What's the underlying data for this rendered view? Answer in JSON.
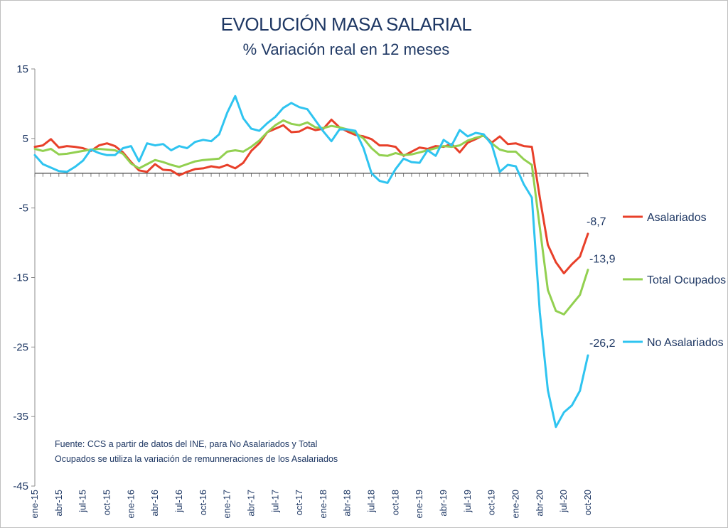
{
  "chart_data": {
    "type": "line",
    "title": "EVOLUCIÓN MASA SALARIAL",
    "subtitle": "% Variación real en 12 meses",
    "xlabel": "",
    "ylabel": "",
    "ylim": [
      -45,
      15
    ],
    "yticks": [
      15,
      5,
      -5,
      -15,
      -25,
      -35,
      -45
    ],
    "ytick_labels": [
      "15",
      "5",
      "-5",
      "-15",
      "-25",
      "-35",
      "-45"
    ],
    "x": [
      "ene-15",
      "feb-15",
      "mar-15",
      "abr-15",
      "may-15",
      "jun-15",
      "jul-15",
      "ago-15",
      "sep-15",
      "oct-15",
      "nov-15",
      "dic-15",
      "ene-16",
      "feb-16",
      "mar-16",
      "abr-16",
      "may-16",
      "jun-16",
      "jul-16",
      "ago-16",
      "sep-16",
      "oct-16",
      "nov-16",
      "dic-16",
      "ene-17",
      "feb-17",
      "mar-17",
      "abr-17",
      "may-17",
      "jun-17",
      "jul-17",
      "ago-17",
      "sep-17",
      "oct-17",
      "nov-17",
      "dic-17",
      "ene-18",
      "feb-18",
      "mar-18",
      "abr-18",
      "may-18",
      "jun-18",
      "jul-18",
      "ago-18",
      "sep-18",
      "oct-18",
      "nov-18",
      "dic-18",
      "ene-19",
      "feb-19",
      "mar-19",
      "abr-19",
      "may-19",
      "jun-19",
      "jul-19",
      "ago-19",
      "sep-19",
      "oct-19",
      "nov-19",
      "dic-19",
      "ene-20",
      "feb-20",
      "mar-20",
      "abr-20",
      "may-20",
      "jun-20",
      "jul-20",
      "ago-20",
      "sep-20",
      "oct-20"
    ],
    "xtick_labels": [
      "ene-15",
      "abr-15",
      "jul-15",
      "oct-15",
      "ene-16",
      "abr-16",
      "jul-16",
      "oct-16",
      "ene-17",
      "abr-17",
      "jul-17",
      "oct-17",
      "ene-18",
      "abr-18",
      "jul-18",
      "oct-18",
      "ene-19",
      "abr-19",
      "jul-19",
      "oct-19",
      "ene-20",
      "abr-20",
      "jul-20",
      "oct-20"
    ],
    "series": [
      {
        "name": "Asalariados",
        "color": "#e8402a",
        "end_label": "-8,7",
        "values": [
          3.8,
          4.0,
          4.9,
          3.7,
          3.9,
          3.8,
          3.6,
          3.2,
          4.0,
          4.3,
          3.9,
          3.0,
          1.6,
          0.4,
          0.2,
          1.3,
          0.5,
          0.4,
          -0.3,
          0.2,
          0.6,
          0.7,
          1.0,
          0.8,
          1.2,
          0.7,
          1.5,
          3.2,
          4.3,
          5.9,
          6.4,
          6.9,
          5.9,
          6.0,
          6.6,
          6.2,
          6.4,
          7.7,
          6.6,
          6.0,
          5.5,
          5.3,
          4.9,
          4.0,
          4.0,
          3.8,
          2.5,
          3.1,
          3.7,
          3.5,
          3.9,
          3.8,
          4.2,
          3.0,
          4.4,
          4.9,
          5.5,
          4.4,
          5.3,
          4.2,
          4.3,
          3.9,
          3.8,
          -3.5,
          -10.3,
          -12.8,
          -14.4,
          -13.1,
          -12.0,
          -8.7
        ]
      },
      {
        "name": "Total Ocupados",
        "color": "#92d050",
        "end_label": "-13,9",
        "values": [
          3.5,
          3.2,
          3.5,
          2.7,
          2.8,
          3.0,
          3.2,
          3.4,
          3.5,
          3.4,
          3.3,
          2.8,
          1.4,
          0.7,
          1.3,
          1.9,
          1.6,
          1.2,
          0.9,
          1.3,
          1.7,
          1.9,
          2.0,
          2.1,
          3.1,
          3.3,
          3.1,
          3.8,
          4.7,
          5.9,
          6.9,
          7.6,
          7.1,
          6.9,
          7.3,
          6.6,
          6.5,
          6.8,
          6.6,
          6.3,
          5.8,
          5.0,
          3.6,
          2.6,
          2.5,
          2.9,
          2.6,
          2.7,
          3.0,
          3.3,
          3.6,
          3.9,
          3.8,
          4.0,
          4.7,
          5.1,
          5.4,
          4.3,
          3.4,
          3.1,
          3.1,
          2.0,
          1.2,
          -7.8,
          -16.8,
          -19.8,
          -20.3,
          -18.9,
          -17.5,
          -13.9
        ]
      },
      {
        "name": "No Asalariados",
        "color": "#2fc4f0",
        "end_label": "-26,2",
        "values": [
          2.6,
          1.3,
          0.8,
          0.3,
          0.2,
          0.9,
          1.8,
          3.4,
          2.9,
          2.6,
          2.6,
          3.6,
          3.9,
          1.7,
          4.3,
          4.0,
          4.2,
          3.3,
          3.9,
          3.6,
          4.5,
          4.8,
          4.6,
          5.6,
          8.7,
          11.1,
          7.9,
          6.4,
          6.1,
          7.2,
          8.1,
          9.4,
          10.1,
          9.5,
          9.2,
          7.6,
          6.0,
          4.6,
          6.3,
          6.3,
          6.1,
          3.6,
          0.0,
          -1.1,
          -1.4,
          0.6,
          2.1,
          1.6,
          1.5,
          3.3,
          2.5,
          4.8,
          4.0,
          6.2,
          5.3,
          5.8,
          5.6,
          4.1,
          0.2,
          1.2,
          1.0,
          -1.6,
          -3.5,
          -20.0,
          -31.2,
          -36.5,
          -34.4,
          -33.4,
          -31.3,
          -26.2
        ]
      }
    ],
    "legend": {
      "placement": "right"
    },
    "grid": false,
    "source_note": "Fuente: CCS a partir de datos del INE, para No Asalariados y Total Ocupados se utiliza la variación de remunneraciones de los Asalariados"
  }
}
